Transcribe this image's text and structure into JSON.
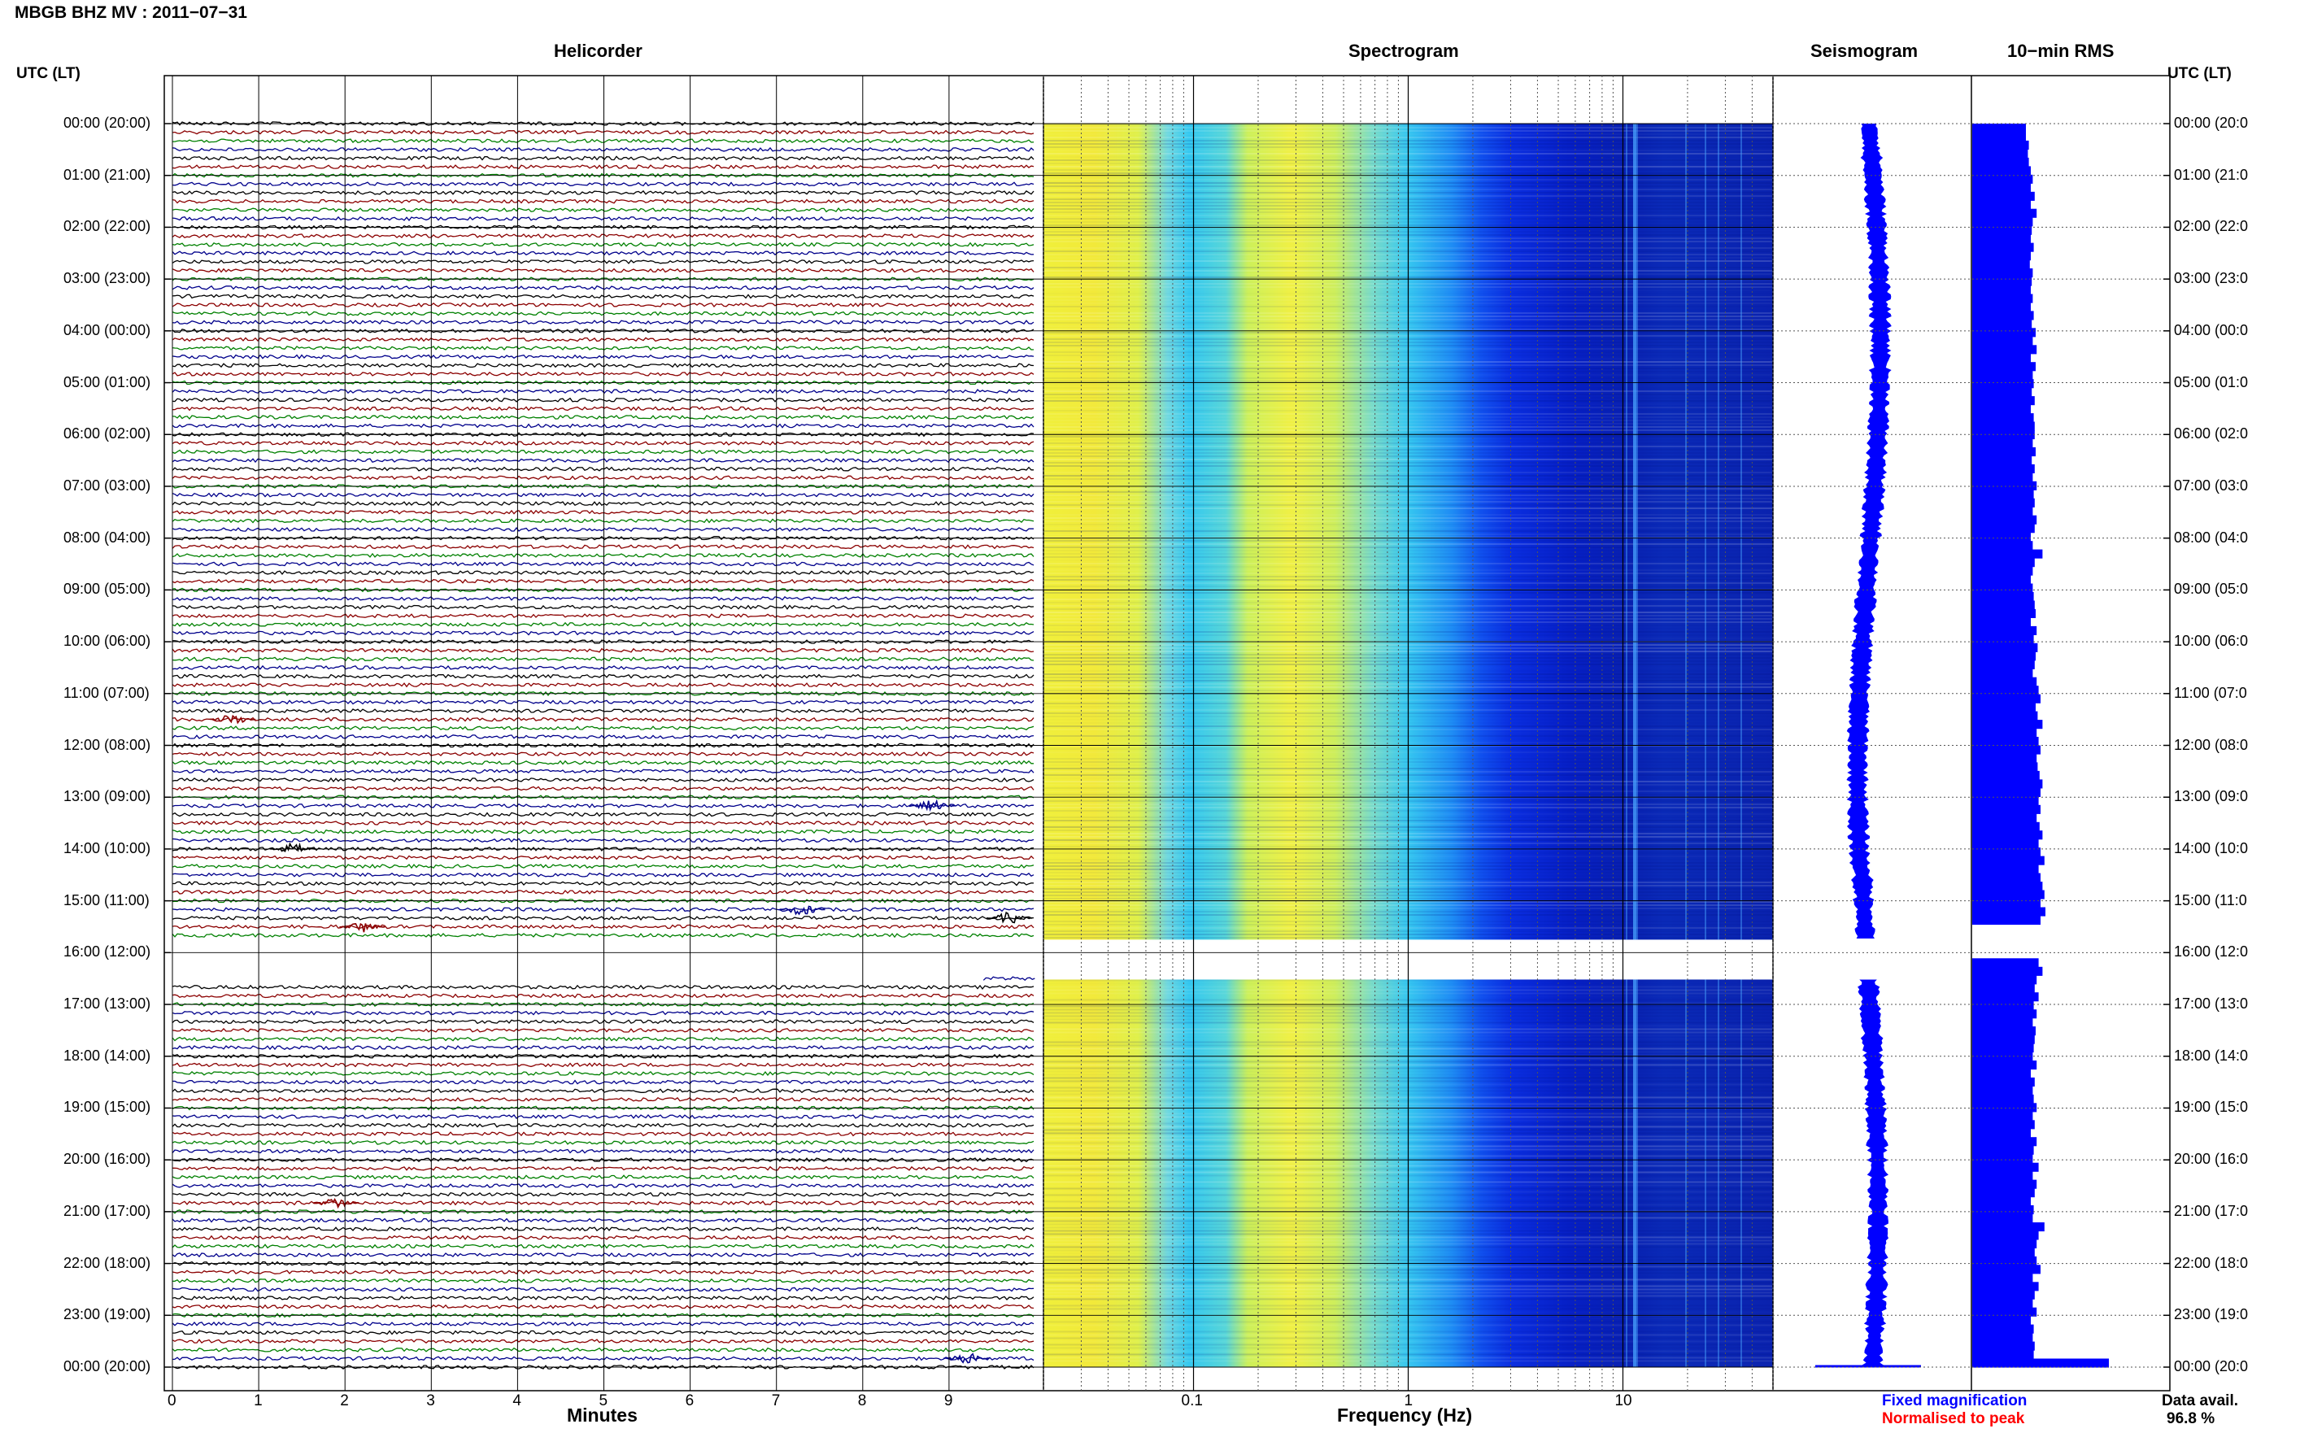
{
  "header": {
    "title": "MBGB BHZ MV : 2011−07−31",
    "left_axis_label": "UTC (LT)",
    "right_axis_label": "UTC (LT)"
  },
  "panels": {
    "helicorder": "Helicorder",
    "spectrogram": "Spectrogram",
    "seismogram": "Seismogram",
    "rms": "10−min RMS"
  },
  "time_labels_left": [
    "00:00 (20:00)",
    "01:00 (21:00)",
    "02:00 (22:00)",
    "03:00 (23:00)",
    "04:00 (00:00)",
    "05:00 (01:00)",
    "06:00 (02:00)",
    "07:00 (03:00)",
    "08:00 (04:00)",
    "09:00 (05:00)",
    "10:00 (06:00)",
    "11:00 (07:00)",
    "12:00 (08:00)",
    "13:00 (09:00)",
    "14:00 (10:00)",
    "15:00 (11:00)",
    "16:00 (12:00)",
    "17:00 (13:00)",
    "18:00 (14:00)",
    "19:00 (15:00)",
    "20:00 (16:00)",
    "21:00 (17:00)",
    "22:00 (18:00)",
    "23:00 (19:00)",
    "00:00 (20:00)"
  ],
  "time_labels_right": [
    "00:00 (20:0",
    "01:00 (21:0",
    "02:00 (22:0",
    "03:00 (23:0",
    "04:00 (00:0",
    "05:00 (01:0",
    "06:00 (02:0",
    "07:00 (03:0",
    "08:00 (04:0",
    "09:00 (05:0",
    "10:00 (06:0",
    "11:00 (07:0",
    "12:00 (08:0",
    "13:00 (09:0",
    "14:00 (10:0",
    "15:00 (11:0",
    "16:00 (12:0",
    "17:00 (13:0",
    "18:00 (14:0",
    "19:00 (15:0",
    "20:00 (16:0",
    "21:00 (17:0",
    "22:00 (18:0",
    "23:00 (19:0",
    "00:00 (20:0"
  ],
  "footer": {
    "legend_fixed": "Fixed magnification",
    "legend_normalised": "Normalised to peak",
    "data_avail_label": "Data avail.",
    "data_avail_value": "96.8 %"
  },
  "colors": {
    "trace_cycle": [
      "#000000",
      "#8b0000",
      "#008000",
      "#00008b"
    ],
    "seismogram": "#0000ff",
    "rms_bar": "#0000ff",
    "legend_fixed": "#0000ff",
    "legend_normalised": "#ff0000"
  },
  "chart_data": {
    "type": "helicorder-multi-panel",
    "time_range_hours": [
      0,
      24
    ],
    "data_gap_hours": [
      15.75,
      16.5
    ],
    "helicorder": {
      "xlabel": "Minutes",
      "x_ticks": [
        "0",
        "1",
        "2",
        "3",
        "4",
        "5",
        "6",
        "7",
        "8",
        "9"
      ],
      "xlim": [
        0,
        10
      ],
      "lines_per_hour": 6,
      "events": [
        {
          "hour": 11.5,
          "minute": 0.7
        },
        {
          "hour": 13.17,
          "minute": 8.8
        },
        {
          "hour": 14.0,
          "minute": 1.4
        },
        {
          "hour": 15.17,
          "minute": 7.3
        },
        {
          "hour": 15.33,
          "minute": 9.7
        },
        {
          "hour": 15.5,
          "minute": 2.2
        },
        {
          "hour": 20.83,
          "minute": 1.9
        },
        {
          "hour": 23.83,
          "minute": 9.2
        }
      ]
    },
    "spectrogram": {
      "xlabel": "Frequency (Hz)",
      "x_scale": "log",
      "xlim": [
        0.02,
        50
      ],
      "x_tick_labels": [
        "0.1",
        "1",
        "10"
      ],
      "x_tick_values": [
        0.1,
        1,
        10
      ]
    },
    "seismogram": {
      "legend": [
        "Fixed magnification",
        "Normalised to peak"
      ]
    },
    "rms_10min": {
      "bar_lengths_relative": [
        0.55,
        0.55,
        0.58,
        0.57,
        0.58,
        0.6,
        0.62,
        0.6,
        0.64,
        0.6,
        0.66,
        0.62,
        0.61,
        0.6,
        0.63,
        0.6,
        0.59,
        0.62,
        0.61,
        0.6,
        0.62,
        0.6,
        0.63,
        0.61,
        0.65,
        0.62,
        0.66,
        0.6,
        0.65,
        0.62,
        0.63,
        0.61,
        0.64,
        0.6,
        0.63,
        0.64,
        0.64,
        0.62,
        0.65,
        0.61,
        0.64,
        0.62,
        0.66,
        0.63,
        0.64,
        0.62,
        0.66,
        0.64,
        0.6,
        0.62,
        0.72,
        0.64,
        0.62,
        0.6,
        0.62,
        0.63,
        0.64,
        0.65,
        0.6,
        0.66,
        0.63,
        0.67,
        0.65,
        0.64,
        0.62,
        0.66,
        0.68,
        0.7,
        0.65,
        0.67,
        0.72,
        0.66,
        0.68,
        0.7,
        0.66,
        0.67,
        0.69,
        0.72,
        0.7,
        0.68,
        0.7,
        0.66,
        0.69,
        0.72,
        0.68,
        0.7,
        0.74,
        0.68,
        0.7,
        0.72,
        0.74,
        0.7,
        0.75,
        0.7,
        null,
        null,
        null,
        null,
        0.68,
        0.72,
        0.66,
        0.64,
        0.68,
        0.63,
        0.66,
        0.62,
        0.65,
        0.64,
        0.63,
        0.62,
        0.66,
        0.6,
        0.64,
        0.62,
        0.63,
        0.66,
        0.62,
        0.64,
        0.6,
        0.66,
        0.63,
        0.62,
        0.68,
        0.62,
        0.66,
        0.64,
        0.6,
        0.63,
        0.62,
        0.74,
        0.68,
        0.66,
        0.64,
        0.66,
        0.7,
        0.62,
        0.68,
        0.64,
        0.62,
        0.66,
        0.6,
        0.63,
        0.62,
        0.64,
        0.63,
        1.4
      ]
    }
  }
}
